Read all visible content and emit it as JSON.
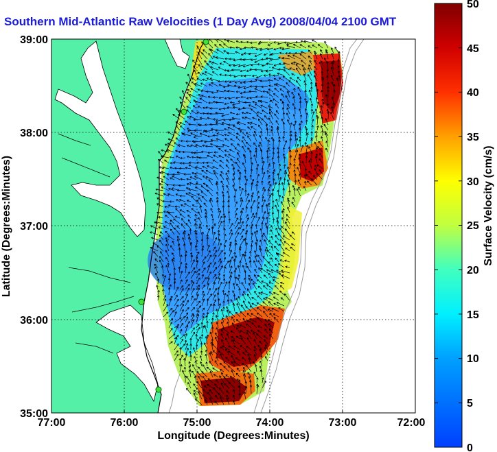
{
  "title": "Southern Mid-Atlantic Raw Velocities (1 Day Avg) 2008/04/04 2100 GMT",
  "xaxis": {
    "label": "Longitude (Degrees:Minutes)",
    "ticks": [
      "77:00",
      "76:00",
      "75:00",
      "74:00",
      "73:00",
      "72:00"
    ]
  },
  "yaxis": {
    "label": "Latitude (Degrees:Minutes)",
    "ticks": [
      "39:00",
      "38:00",
      "37:00",
      "36:00",
      "35:00"
    ]
  },
  "colorbar": {
    "label": "Surface Velocity (cm/s)",
    "ticks": [
      "50",
      "45",
      "40",
      "35",
      "30",
      "25",
      "20",
      "15",
      "10",
      "5",
      "0"
    ]
  },
  "colors": {
    "land": "#55f0a8",
    "title": "#1a1ad8"
  }
}
